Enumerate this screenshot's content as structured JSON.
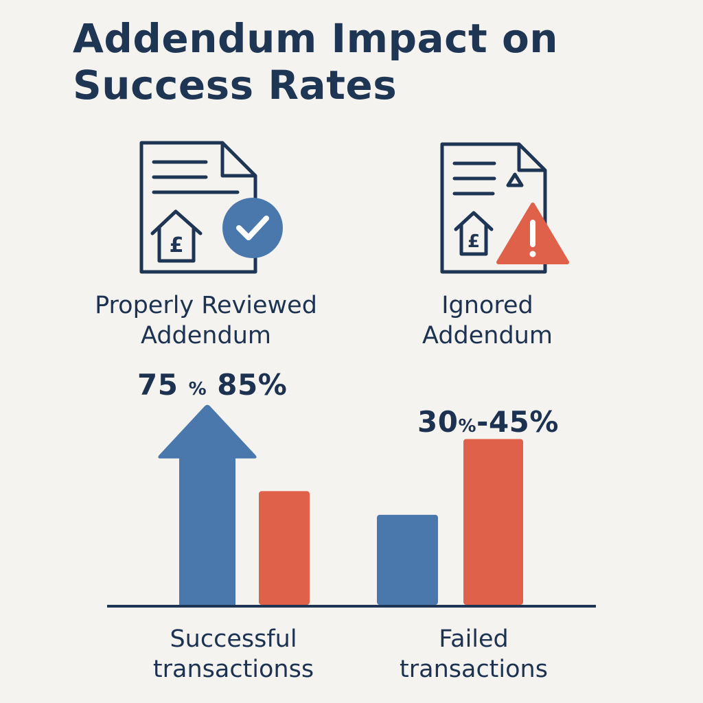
{
  "title": "Addendum Impact on Success Rates",
  "colors": {
    "reviewed": "#4a78ad",
    "ignored": "#e0614a",
    "ink": "#1e3553",
    "background": "#f4f3f0"
  },
  "icons": {
    "reviewed": "document-house-check-icon",
    "ignored": "document-house-warning-icon"
  },
  "groups": {
    "reviewed": {
      "line1": "Properly Reviewed",
      "line2": "Addendum"
    },
    "ignored": {
      "line1": "Ignored",
      "line2": "Addendum"
    }
  },
  "ranges": {
    "success": {
      "low": "75",
      "low_unit": "%",
      "high": "85%"
    },
    "failed": {
      "low": "30",
      "low_unit": "%",
      "high": "-45%"
    }
  },
  "chart_data": {
    "type": "bar",
    "title": "Addendum Impact on Success Rates",
    "categories": [
      "Successful transactionss",
      "Failed transactions"
    ],
    "series": [
      {
        "name": "Properly Reviewed Addendum",
        "values": [
          85,
          38
        ],
        "color": "#4a78ad"
      },
      {
        "name": "Ignored Addendum",
        "values": [
          48,
          70
        ],
        "color": "#e0614a"
      }
    ],
    "ylim": [
      0,
      100
    ],
    "grid": false,
    "legend": "none",
    "annotations": [
      "75 % 85%",
      "30 %-45%"
    ]
  },
  "categories_text": {
    "success": {
      "line1": "Successful",
      "line2": "transactionss"
    },
    "failed": {
      "line1": "Failed",
      "line2": "transactions"
    }
  }
}
